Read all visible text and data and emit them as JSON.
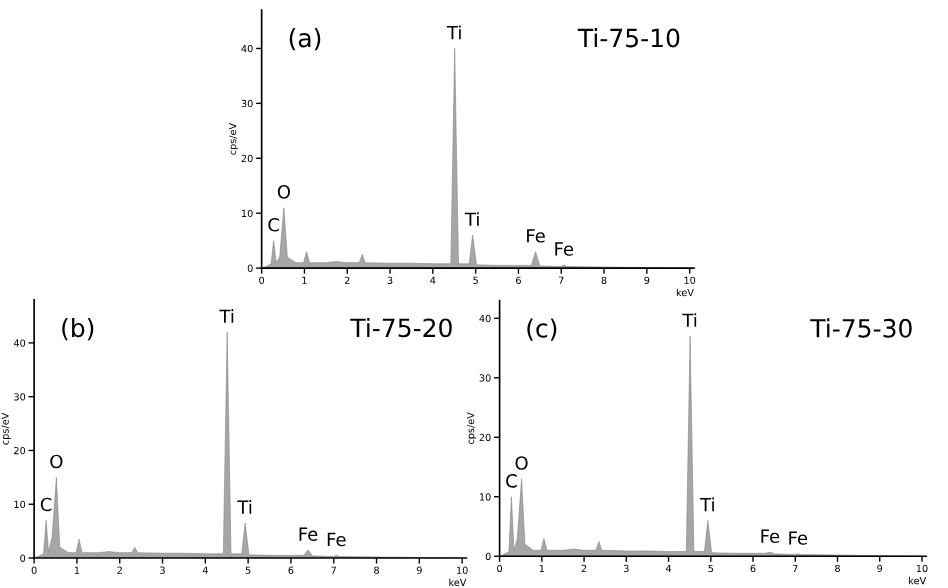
{
  "chart_data": [
    {
      "type": "area",
      "title": "Ti-75-10",
      "xlabel": "keV",
      "ylabel": "cps/eV",
      "color": "#a6a6a6",
      "x": [
        0,
        0.15,
        0.22,
        0.28,
        0.34,
        0.42,
        0.52,
        0.6,
        0.7,
        0.8,
        0.98,
        1.05,
        1.12,
        1.5,
        1.75,
        2.0,
        2.28,
        2.35,
        2.42,
        3.0,
        3.5,
        4.0,
        4.42,
        4.51,
        4.6,
        4.85,
        4.93,
        5.02,
        5.5,
        6.3,
        6.4,
        6.5,
        7.0,
        7.06,
        7.12,
        8,
        9,
        10
      ],
      "values": [
        0,
        0.5,
        0.8,
        5,
        1,
        2,
        11,
        2,
        1.5,
        1,
        1,
        3,
        1,
        1,
        1.2,
        1,
        1,
        2.5,
        1,
        0.9,
        0.9,
        0.8,
        0.8,
        40,
        0.8,
        0.8,
        6,
        0.6,
        0.5,
        0.5,
        3,
        0.4,
        0.3,
        0.6,
        0.3,
        0.2,
        0.1,
        0
      ],
      "xlim": [
        0,
        10.1
      ],
      "ylim": [
        0,
        47
      ],
      "xticks": [
        0,
        1,
        2,
        3,
        4,
        5,
        6,
        7,
        8,
        9,
        10
      ],
      "yticks": [
        0,
        10,
        20,
        30,
        40
      ],
      "annotations": [
        "(a)",
        {
          "text": "C",
          "x": 0.28,
          "y": 5
        },
        {
          "text": "O",
          "x": 0.52,
          "y": 11
        },
        {
          "text": "Ti",
          "x": 4.51,
          "y": 40
        },
        {
          "text": "Ti",
          "x": 4.93,
          "y": 6
        },
        {
          "text": "Fe",
          "x": 6.4,
          "y": 3
        },
        {
          "text": "Fe",
          "x": 7.06,
          "y": 0.6
        }
      ]
    },
    {
      "type": "area",
      "title": "Ti-75-20",
      "xlabel": "keV",
      "ylabel": "cps/eV",
      "color": "#a6a6a6",
      "x": [
        0,
        0.15,
        0.22,
        0.28,
        0.34,
        0.42,
        0.52,
        0.6,
        0.7,
        0.8,
        0.98,
        1.05,
        1.12,
        1.5,
        1.75,
        2.0,
        2.28,
        2.35,
        2.42,
        3.0,
        3.5,
        4.0,
        4.42,
        4.51,
        4.6,
        4.85,
        4.93,
        5.02,
        5.5,
        6.3,
        6.4,
        6.5,
        7.0,
        7.06,
        7.12,
        8,
        9,
        10
      ],
      "values": [
        0,
        0.5,
        0.8,
        7,
        1,
        4,
        15,
        2,
        1.5,
        1,
        1,
        3.5,
        1,
        1,
        1.2,
        1,
        1,
        2,
        1,
        0.9,
        0.9,
        0.8,
        0.8,
        42,
        0.8,
        0.8,
        6.5,
        0.6,
        0.5,
        0.5,
        1.5,
        0.4,
        0.3,
        0.5,
        0.3,
        0.2,
        0.1,
        0
      ],
      "xlim": [
        0,
        10.1
      ],
      "ylim": [
        0,
        48
      ],
      "xticks": [
        0,
        1,
        2,
        3,
        4,
        5,
        6,
        7,
        8,
        9,
        10
      ],
      "yticks": [
        0,
        10,
        20,
        30,
        40
      ],
      "annotations": [
        "(b)",
        {
          "text": "C",
          "x": 0.28,
          "y": 7
        },
        {
          "text": "O",
          "x": 0.52,
          "y": 15
        },
        {
          "text": "Ti",
          "x": 4.51,
          "y": 42
        },
        {
          "text": "Ti",
          "x": 4.93,
          "y": 6.5
        },
        {
          "text": "Fe",
          "x": 6.4,
          "y": 1.5
        },
        {
          "text": "Fe",
          "x": 7.06,
          "y": 0.5
        }
      ]
    },
    {
      "type": "area",
      "title": "Ti-75-30",
      "xlabel": "keV",
      "ylabel": "cps/eV",
      "color": "#a6a6a6",
      "x": [
        0,
        0.15,
        0.22,
        0.28,
        0.34,
        0.42,
        0.52,
        0.6,
        0.7,
        0.8,
        0.98,
        1.05,
        1.12,
        1.5,
        1.75,
        2.0,
        2.28,
        2.35,
        2.42,
        3.0,
        3.5,
        4.0,
        4.42,
        4.51,
        4.6,
        4.85,
        4.93,
        5.02,
        5.5,
        6.3,
        6.4,
        6.5,
        7.0,
        7.06,
        7.12,
        8,
        9,
        10
      ],
      "values": [
        0,
        0.5,
        0.8,
        10,
        1,
        3,
        13,
        2,
        1.5,
        1,
        1,
        3,
        1,
        1,
        1.2,
        1,
        1,
        2.5,
        1,
        0.9,
        0.9,
        0.8,
        0.8,
        37,
        0.8,
        0.8,
        6,
        0.6,
        0.5,
        0.5,
        0.7,
        0.4,
        0.3,
        0.4,
        0.3,
        0.2,
        0.1,
        0
      ],
      "xlim": [
        0,
        10.1
      ],
      "ylim": [
        0,
        43
      ],
      "xticks": [
        0,
        1,
        2,
        3,
        4,
        5,
        6,
        7,
        8,
        9,
        10
      ],
      "yticks": [
        0,
        10,
        20,
        30,
        40
      ],
      "annotations": [
        "(c)",
        {
          "text": "C",
          "x": 0.28,
          "y": 10
        },
        {
          "text": "O",
          "x": 0.52,
          "y": 13
        },
        {
          "text": "Ti",
          "x": 4.51,
          "y": 37
        },
        {
          "text": "Ti",
          "x": 4.93,
          "y": 6
        },
        {
          "text": "Fe",
          "x": 6.4,
          "y": 0.7
        },
        {
          "text": "Fe",
          "x": 7.06,
          "y": 0.4
        }
      ]
    }
  ]
}
